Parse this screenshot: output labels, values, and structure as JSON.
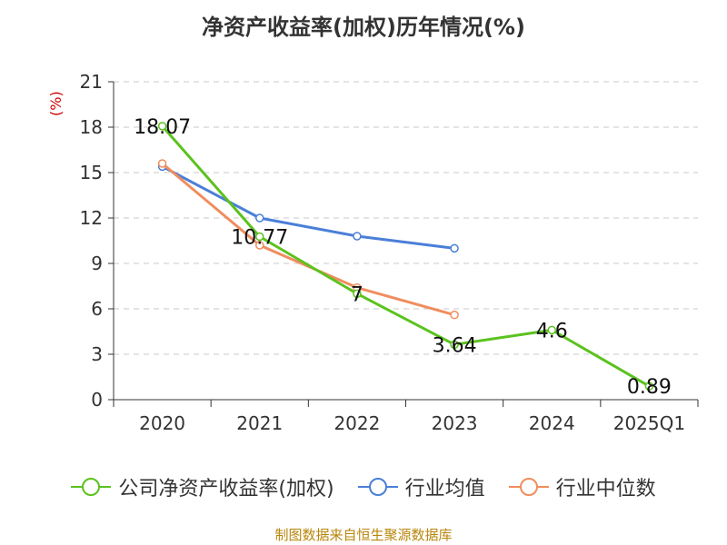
{
  "chart_data": {
    "type": "line",
    "title": "净资产收益率(加权)历年情况(%)",
    "unit_label": "(%)",
    "categories": [
      "2020",
      "2021",
      "2022",
      "2023",
      "2024",
      "2025Q1"
    ],
    "ylim": [
      0,
      21
    ],
    "yticks": [
      0,
      3,
      6,
      9,
      12,
      15,
      18,
      21
    ],
    "grid": true,
    "legend_position": "bottom",
    "series": [
      {
        "name": "公司净资产收益率(加权)",
        "color": "#5bc21e",
        "values": [
          18.07,
          10.77,
          7,
          3.64,
          4.6,
          0.89
        ],
        "labels": [
          "18.07",
          "10.77",
          "7",
          "3.64",
          "4.6",
          "0.89"
        ]
      },
      {
        "name": "行业均值",
        "color": "#4a7fd8",
        "values": [
          15.4,
          12.0,
          10.8,
          10.0,
          null,
          null
        ]
      },
      {
        "name": "行业中位数",
        "color": "#f08d5e",
        "values": [
          15.6,
          10.2,
          7.4,
          5.6,
          null,
          null
        ]
      }
    ]
  },
  "source": "制图数据来自恒生聚源数据库"
}
